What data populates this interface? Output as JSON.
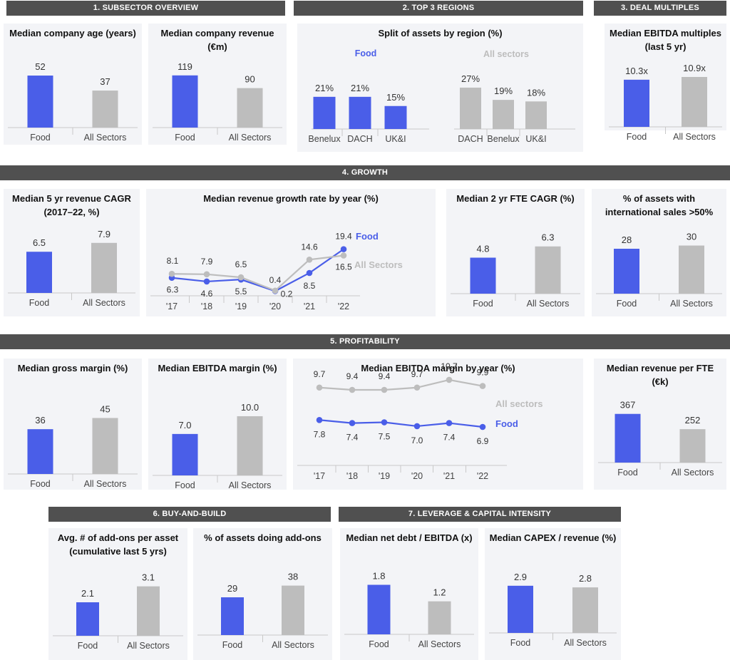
{
  "colors": {
    "food": "#4a5ee8",
    "all": "#bdbdbd",
    "header": "#505050",
    "panel": "#f3f4f7",
    "axis": "#c8c8c8"
  },
  "headers": [
    "1. SUBSECTOR OVERVIEW",
    "2. TOP 3 REGIONS",
    "3. DEAL MULTIPLES",
    "4. GROWTH",
    "5.  PROFITABILITY",
    "6. BUY-AND-BUILD",
    "7. LEVERAGE & CAPITAL INTENSITY"
  ],
  "chart_data": [
    {
      "id": "company-age",
      "type": "bar",
      "title": "Median company age (years)",
      "categories": [
        "Food",
        "All Sectors"
      ],
      "values": [
        52,
        37
      ],
      "labels": [
        "52",
        "37"
      ]
    },
    {
      "id": "company-revenue",
      "type": "bar",
      "title": "Median company revenue (€m)",
      "categories": [
        "Food",
        "All Sectors"
      ],
      "values": [
        119,
        90
      ],
      "labels": [
        "119",
        "90"
      ]
    },
    {
      "id": "assets-by-region",
      "type": "bar",
      "title": "Split of assets by region (%)",
      "series": [
        {
          "name": "Food",
          "categories": [
            "Benelux",
            "DACH",
            "UK&I"
          ],
          "values": [
            21,
            21,
            15
          ],
          "labels": [
            "21%",
            "21%",
            "15%"
          ]
        },
        {
          "name": "All sectors",
          "categories": [
            "DACH",
            "Benelux",
            "UK&I"
          ],
          "values": [
            27,
            19,
            18
          ],
          "labels": [
            "27%",
            "19%",
            "18%"
          ]
        }
      ]
    },
    {
      "id": "ebitda-multiples",
      "type": "bar",
      "title": "Median EBITDA multiples (last 5 yr)",
      "categories": [
        "Food",
        "All Sectors"
      ],
      "values": [
        10.3,
        10.9
      ],
      "labels": [
        "10.3x",
        "10.9x"
      ]
    },
    {
      "id": "revenue-cagr",
      "type": "bar",
      "title": "Median 5 yr revenue CAGR (2017–22, %)",
      "categories": [
        "Food",
        "All Sectors"
      ],
      "values": [
        6.5,
        7.9
      ],
      "labels": [
        "6.5",
        "7.9"
      ]
    },
    {
      "id": "revenue-growth-by-year",
      "type": "line",
      "title": "Median revenue growth rate by year (%)",
      "x": [
        "'17",
        "'18",
        "'19",
        "'20",
        "'21",
        "'22"
      ],
      "series": [
        {
          "name": "Food",
          "values": [
            6.3,
            4.6,
            5.5,
            0.2,
            8.5,
            19.4
          ],
          "labels": [
            "6.3",
            "4.6",
            "5.5",
            "0.2",
            "8.5",
            "19.4"
          ]
        },
        {
          "name": "All Sectors",
          "values": [
            8.1,
            7.9,
            6.5,
            0.4,
            14.6,
            16.5
          ],
          "labels": [
            "8.1",
            "7.9",
            "6.5",
            "0.4",
            "14.6",
            "16.5"
          ]
        }
      ]
    },
    {
      "id": "fte-cagr",
      "type": "bar",
      "title": "Median 2 yr FTE CAGR (%)",
      "categories": [
        "Food",
        "All Sectors"
      ],
      "values": [
        4.8,
        6.3
      ],
      "labels": [
        "4.8",
        "6.3"
      ]
    },
    {
      "id": "intl-sales",
      "type": "bar",
      "title": "% of assets with international sales >50%",
      "categories": [
        "Food",
        "All Sectors"
      ],
      "values": [
        28,
        30
      ],
      "labels": [
        "28",
        "30"
      ]
    },
    {
      "id": "gross-margin",
      "type": "bar",
      "title": "Median gross margin (%)",
      "categories": [
        "Food",
        "All Sectors"
      ],
      "values": [
        36,
        45
      ],
      "labels": [
        "36",
        "45"
      ]
    },
    {
      "id": "ebitda-margin",
      "type": "bar",
      "title": "Median EBITDA margin (%)",
      "categories": [
        "Food",
        "All Sectors"
      ],
      "values": [
        7.0,
        10.0
      ],
      "labels": [
        "7.0",
        "10.0"
      ]
    },
    {
      "id": "ebitda-margin-by-year",
      "type": "line",
      "title": "Median EBITDA margin by year (%)",
      "x": [
        "'17",
        "'18",
        "'19",
        "'20",
        "'21",
        "'22"
      ],
      "series": [
        {
          "name": "All sectors",
          "values": [
            9.7,
            9.4,
            9.4,
            9.7,
            10.7,
            9.9
          ],
          "labels": [
            "9.7",
            "9.4",
            "9.4",
            "9.7",
            "10.7",
            "9.9"
          ]
        },
        {
          "name": "Food",
          "values": [
            7.8,
            7.4,
            7.5,
            7.0,
            7.4,
            6.9
          ],
          "labels": [
            "7.8",
            "7.4",
            "7.5",
            "7.0",
            "7.4",
            "6.9"
          ]
        }
      ]
    },
    {
      "id": "revenue-per-fte",
      "type": "bar",
      "title": "Median revenue per FTE (€k)",
      "categories": [
        "Food",
        "All Sectors"
      ],
      "values": [
        367,
        252
      ],
      "labels": [
        "367",
        "252"
      ]
    },
    {
      "id": "add-ons-per-asset",
      "type": "bar",
      "title": "Avg. # of add-ons per asset (cumulative last 5 yrs)",
      "categories": [
        "Food",
        "All Sectors"
      ],
      "values": [
        2.1,
        3.1
      ],
      "labels": [
        "2.1",
        "3.1"
      ]
    },
    {
      "id": "assets-doing-addons",
      "type": "bar",
      "title": "% of assets doing add-ons",
      "categories": [
        "Food",
        "All Sectors"
      ],
      "values": [
        29,
        38
      ],
      "labels": [
        "29",
        "38"
      ]
    },
    {
      "id": "net-debt-ebitda",
      "type": "bar",
      "title": "Median net debt / EBITDA (x)",
      "categories": [
        "Food",
        "All Sectors"
      ],
      "values": [
        1.8,
        1.2
      ],
      "labels": [
        "1.8",
        "1.2"
      ]
    },
    {
      "id": "capex-revenue",
      "type": "bar",
      "title": "Median CAPEX / revenue (%)",
      "categories": [
        "Food",
        "All Sectors"
      ],
      "values": [
        2.9,
        2.8
      ],
      "labels": [
        "2.9",
        "2.8"
      ]
    }
  ]
}
